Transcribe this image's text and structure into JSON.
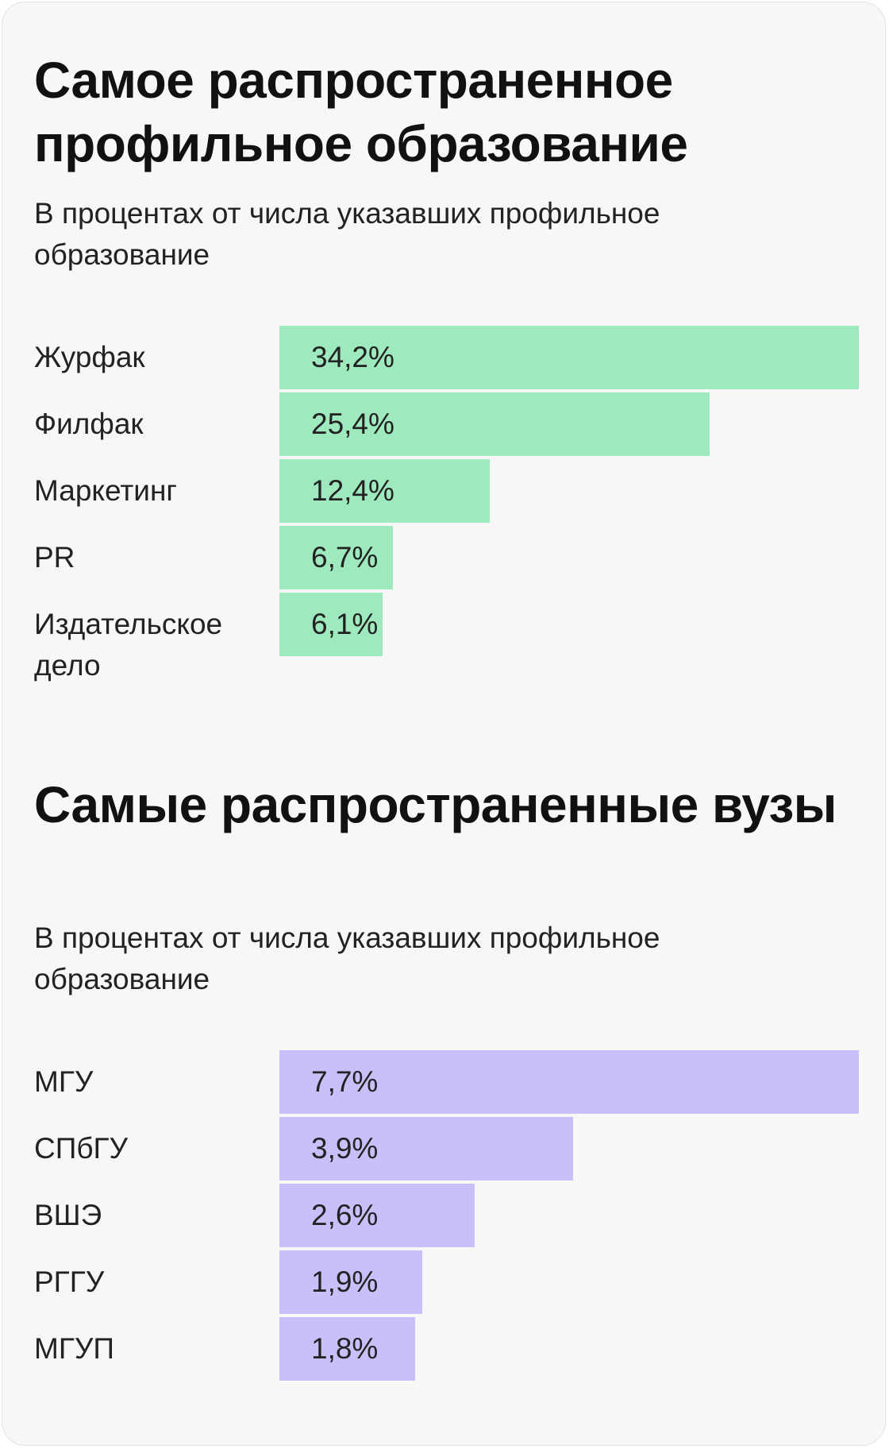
{
  "chart_data": [
    {
      "type": "bar",
      "orientation": "horizontal",
      "title": "Самое распространенное профильное образование",
      "subtitle": "В процентах от числа указавших профильное образование",
      "bar_color": "#9fe9be",
      "categories": [
        "Журфак",
        "Филфак",
        "Маркетинг",
        "PR",
        "Издательское дело"
      ],
      "values": [
        34.2,
        25.4,
        12.4,
        6.7,
        6.1
      ],
      "value_labels": [
        "34,2%",
        "25,4%",
        "12,4%",
        "6,7%",
        "6,1%"
      ]
    },
    {
      "type": "bar",
      "orientation": "horizontal",
      "title": "Самые распространенные вузы",
      "subtitle": "В процентах от числа указавших профильное образование",
      "bar_color": "#c8c0fb",
      "categories": [
        "МГУ",
        "СПбГУ",
        "ВШЭ",
        "РГГУ",
        "МГУП"
      ],
      "values": [
        7.7,
        3.9,
        2.6,
        1.9,
        1.8
      ],
      "value_labels": [
        "7,7%",
        "3,9%",
        "2,6%",
        "1,9%",
        "1,8%"
      ]
    }
  ]
}
